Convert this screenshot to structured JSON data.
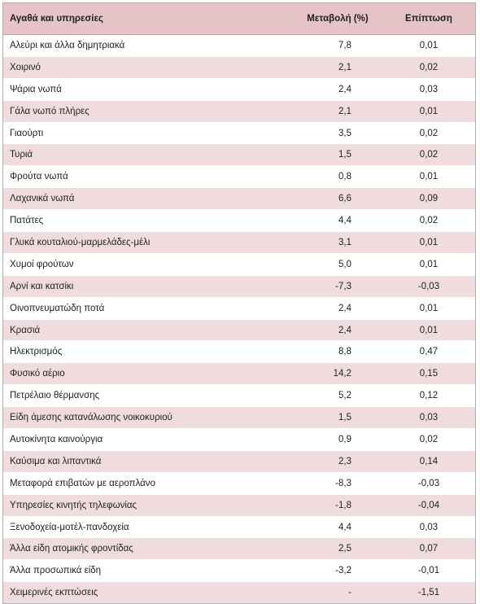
{
  "table": {
    "headers": {
      "item": "Αγαθά και υπηρεσίες",
      "change": "Μεταβολή (%)",
      "impact": "Επίπτωση"
    },
    "rows": [
      {
        "item": "Αλεύρι και άλλα δημητριακά",
        "change": "7,8",
        "impact": "0,01"
      },
      {
        "item": "Χοιρινό",
        "change": "2,1",
        "impact": "0,02"
      },
      {
        "item": "Ψάρια νωπά",
        "change": "2,4",
        "impact": "0,03"
      },
      {
        "item": "Γάλα νωπό πλήρες",
        "change": "2,1",
        "impact": "0,01"
      },
      {
        "item": "Γιαούρτι",
        "change": "3,5",
        "impact": "0,02"
      },
      {
        "item": "Τυριά",
        "change": "1,5",
        "impact": "0,02"
      },
      {
        "item": "Φρούτα νωπά",
        "change": "0,8",
        "impact": "0,01"
      },
      {
        "item": "Λαχανικά νωπά",
        "change": "6,6",
        "impact": "0,09"
      },
      {
        "item": "Πατάτες",
        "change": "4,4",
        "impact": "0,02"
      },
      {
        "item": "Γλυκά κουταλιού-μαρμελάδες-μέλι",
        "change": "3,1",
        "impact": "0,01"
      },
      {
        "item": "Χυμοί φρούτων",
        "change": "5,0",
        "impact": "0,01"
      },
      {
        "item": "Αρνί και κατσίκι",
        "change": "-7,3",
        "impact": "-0,03"
      },
      {
        "item": "Οινοπνευματώδη ποτά",
        "change": "2,4",
        "impact": "0,01"
      },
      {
        "item": "Κρασιά",
        "change": "2,4",
        "impact": "0,01"
      },
      {
        "item": "Ηλεκτρισμός",
        "change": "8,8",
        "impact": "0,47"
      },
      {
        "item": "Φυσικό αέριο",
        "change": "14,2",
        "impact": "0,15"
      },
      {
        "item": "Πετρέλαιο θέρμανσης",
        "change": "5,2",
        "impact": "0,12"
      },
      {
        "item": "Είδη άμεσης κατανάλωσης νοικοκυριού",
        "change": "1,5",
        "impact": "0,03"
      },
      {
        "item": "Αυτοκίνητα καινούργια",
        "change": "0,9",
        "impact": "0,02"
      },
      {
        "item": "Καύσιμα και λιπαντικά",
        "change": "2,3",
        "impact": "0,14"
      },
      {
        "item": "Μεταφορά επιβατών με αεροπλάνο",
        "change": "-8,3",
        "impact": "-0,03"
      },
      {
        "item": "Υπηρεσίες κινητής τηλεφωνίας",
        "change": "-1,8",
        "impact": "-0,04"
      },
      {
        "item": "Ξενοδοχεία-μοτέλ-πανδοχεία",
        "change": "4,4",
        "impact": "0,03"
      },
      {
        "item": "Άλλα είδη ατομικής φροντίδας",
        "change": "2,5",
        "impact": "0,07"
      },
      {
        "item": "Άλλα προσωπικά είδη",
        "change": "-3,2",
        "impact": "-0,01"
      },
      {
        "item": "Χειμερινές εκπτώσεις",
        "change": "-",
        "impact": "-1,51"
      }
    ]
  }
}
